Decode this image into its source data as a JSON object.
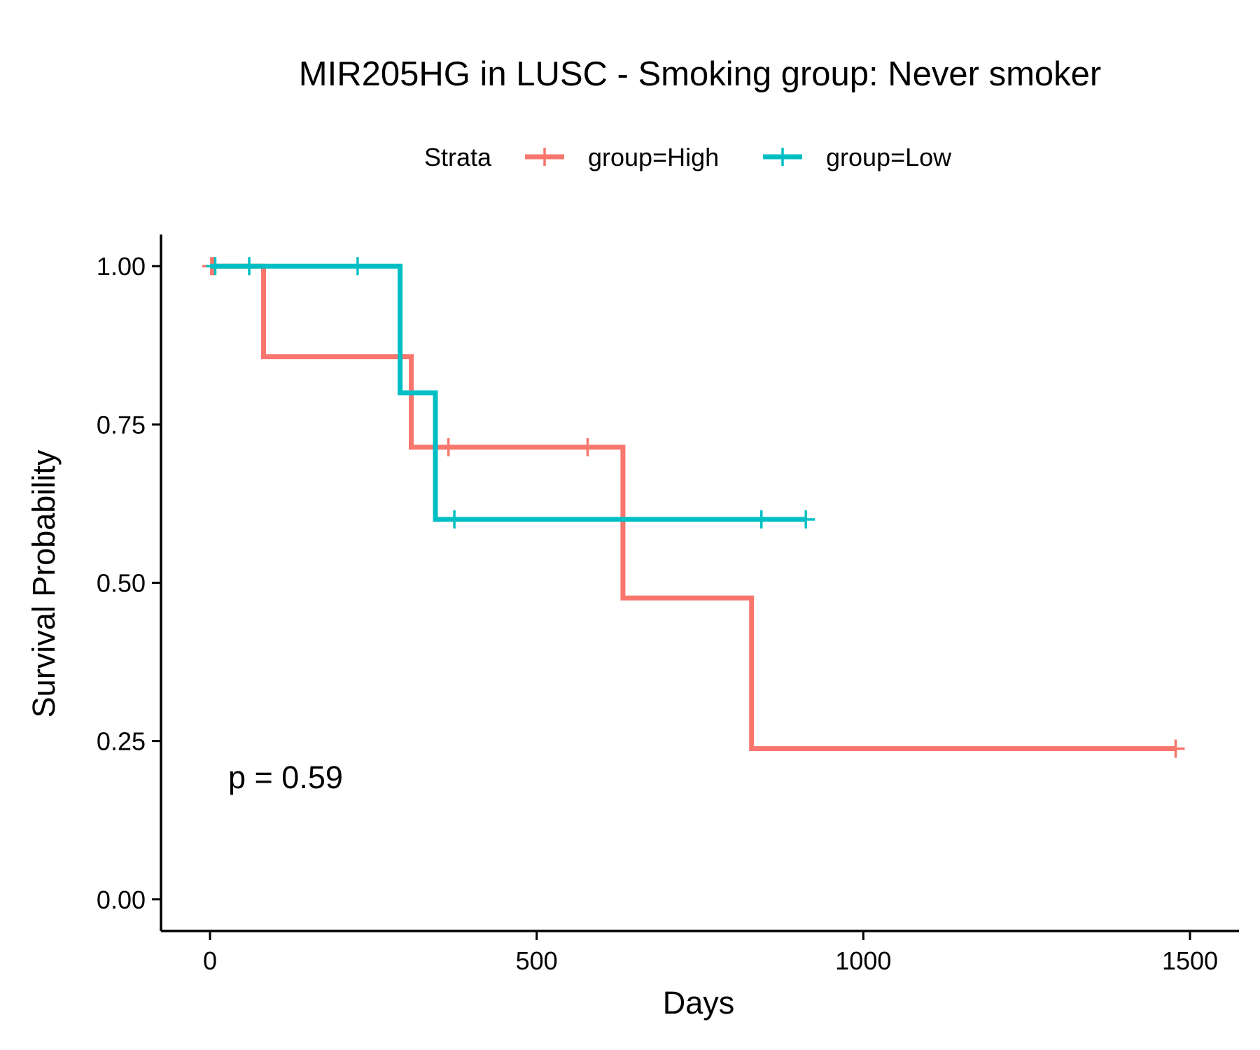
{
  "chart_data": {
    "type": "line",
    "subtype": "kaplan-meier step",
    "title": "MIR205HG in LUSC - Smoking group: Never smoker",
    "xlabel": "Days",
    "ylabel": "Survival Probability",
    "xlim": [
      -75,
      1575
    ],
    "ylim": [
      -0.05,
      1.05
    ],
    "xticks": [
      0,
      500,
      1000,
      1500
    ],
    "xtick_labels": [
      "0",
      "500",
      "1000",
      "1500"
    ],
    "yticks": [
      0,
      0.25,
      0.5,
      0.75,
      1.0
    ],
    "ytick_labels": [
      "0.00",
      "0.25",
      "0.50",
      "0.75",
      "1.00"
    ],
    "grid": false,
    "legend": {
      "title": "Strata",
      "position": "top",
      "entries": [
        "group=High",
        "group=Low"
      ]
    },
    "annotation": "p = 0.59",
    "series": [
      {
        "name": "group=High",
        "color": "#F8766D",
        "steps": [
          [
            0,
            1.0
          ],
          [
            82,
            1.0
          ],
          [
            82,
            0.857
          ],
          [
            308,
            0.857
          ],
          [
            308,
            0.714
          ],
          [
            632,
            0.714
          ],
          [
            632,
            0.476
          ],
          [
            829,
            0.476
          ],
          [
            829,
            0.238
          ],
          [
            1478,
            0.238
          ]
        ],
        "censored": [
          [
            2,
            1.0
          ],
          [
            5,
            1.0
          ],
          [
            365,
            0.714
          ],
          [
            578,
            0.714
          ],
          [
            1478,
            0.238
          ]
        ]
      },
      {
        "name": "group=Low",
        "color": "#00BFC4",
        "steps": [
          [
            0,
            1.0
          ],
          [
            291,
            1.0
          ],
          [
            291,
            0.8
          ],
          [
            345,
            0.8
          ],
          [
            345,
            0.6
          ],
          [
            912,
            0.6
          ]
        ],
        "censored": [
          [
            8,
            1.0
          ],
          [
            60,
            1.0
          ],
          [
            226,
            1.0
          ],
          [
            374,
            0.6
          ],
          [
            844,
            0.6
          ],
          [
            912,
            0.6
          ]
        ]
      }
    ]
  }
}
